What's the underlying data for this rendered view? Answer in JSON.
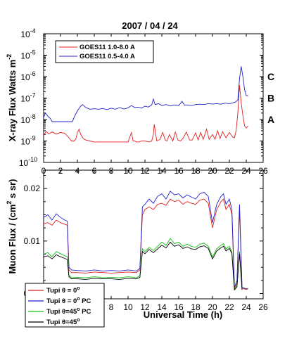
{
  "chart_data": [
    {
      "type": "line",
      "title": "2007 / 04 / 24",
      "ylabel": "X-ray Flux  Watts m",
      "ylabel_exp": "-2",
      "yscale": "log",
      "xlim": [
        0,
        26
      ],
      "ylim": [
        1e-10,
        0.0001
      ],
      "x_ticks": [
        "0",
        "2",
        "4",
        "6",
        "8",
        "10",
        "12",
        "14",
        "16",
        "18",
        "20",
        "22",
        "24",
        "26"
      ],
      "y_ticks": [
        {
          "base": "10",
          "exp": "-4"
        },
        {
          "base": "10",
          "exp": "-5"
        },
        {
          "base": "10",
          "exp": "-6"
        },
        {
          "base": "10",
          "exp": "-7"
        },
        {
          "base": "10",
          "exp": "-8"
        },
        {
          "base": "10",
          "exp": "-9"
        },
        {
          "base": "10",
          "exp": "-10"
        }
      ],
      "flare_classes": [
        {
          "label": "C",
          "value": 1e-06
        },
        {
          "label": "B",
          "value": 1e-07
        },
        {
          "label": "A",
          "value": 1e-08
        }
      ],
      "legend": [
        "GOES11 1.0-8.0 A",
        "GOES11 0.5-4.0 A"
      ],
      "series": [
        {
          "name": "GOES11 1.0-8.0 A",
          "color": "#e02020",
          "x": [
            0,
            0.3,
            0.6,
            1,
            1.5,
            2,
            2.5,
            3,
            3.3,
            3.6,
            3.8,
            4.0,
            4.2,
            4.4,
            4.7,
            5.0,
            5.5,
            6,
            7,
            8,
            9,
            10,
            10.4,
            10.6,
            10.8,
            11,
            11.3,
            11.6,
            12,
            12.5,
            12.8,
            13.0,
            13.1,
            13.4,
            13.8,
            14.1,
            14.4,
            14.6,
            14.9,
            15.3,
            15.6,
            15.9,
            16.2,
            16.5,
            16.9,
            17.3,
            17.6,
            18.0,
            18.3,
            18.6,
            18.9,
            19.3,
            19.6,
            20.0,
            20.3,
            20.6,
            20.9,
            21.2,
            21.6,
            22.0,
            22.4,
            22.6,
            22.8,
            23.0,
            23.2,
            23.4,
            23.6,
            23.8,
            24.0,
            24.2
          ],
          "y": [
            1.8e-09,
            2.8e-09,
            2.2e-09,
            2.6e-09,
            2.1e-09,
            2.5e-09,
            2.3e-09,
            1.4e-09,
            1e-09,
            1e-09,
            1.2e-09,
            2.5e-09,
            3.5e-09,
            2e-09,
            1.3e-09,
            1.1e-09,
            1e-09,
            9e-10,
            9e-10,
            9e-10,
            9e-10,
            9e-10,
            2.5e-09,
            1e-09,
            1e-09,
            9e-10,
            9e-10,
            1e-09,
            1e-09,
            9e-10,
            1e-09,
            2e-09,
            6e-09,
            1e-09,
            1.2e-09,
            2.5e-09,
            1.1e-09,
            1e-09,
            2e-09,
            1e-09,
            2.6e-09,
            1.1e-09,
            1e-09,
            1.3e-09,
            2.6e-09,
            1.1e-09,
            1.1e-09,
            2.4e-09,
            1.1e-09,
            2.5e-09,
            1.2e-09,
            3.5e-09,
            1.2e-09,
            2e-09,
            1.2e-09,
            3e-09,
            1.3e-09,
            2.7e-09,
            1.4e-09,
            2.5e-09,
            1.5e-09,
            1.4e-09,
            3e-09,
            2e-08,
            4e-07,
            6e-08,
            1.5e-08,
            5e-09,
            4e-09,
            5e-09
          ]
        },
        {
          "name": "GOES11 0.5-4.0 A",
          "color": "#2020c8",
          "x": [
            0,
            0.2,
            0.4,
            0.6,
            0.8,
            1.0,
            1.5,
            2.0,
            2.5,
            3.0,
            3.4,
            3.7,
            4.0,
            4.3,
            4.6,
            5.0,
            5.5,
            6.0,
            6.5,
            7.0,
            7.5,
            8.0,
            8.5,
            9.0,
            9.5,
            10.0,
            10.4,
            10.8,
            11.2,
            11.6,
            12.0,
            12.4,
            12.8,
            13.0,
            13.2,
            13.6,
            14.0,
            14.5,
            15.0,
            15.5,
            16.0,
            16.4,
            16.7,
            17.0,
            17.5,
            18.0,
            18.5,
            19.0,
            19.5,
            20.0,
            20.5,
            21.0,
            21.5,
            22.0,
            22.4,
            22.7,
            23.0,
            23.2,
            23.4,
            23.6,
            23.8,
            24.0,
            24.2
          ],
          "y": [
            1.2e-08,
            2e-08,
            1.6e-08,
            1.3e-08,
            1.1e-08,
            8e-09,
            8e-09,
            8e-09,
            8e-09,
            8e-09,
            8e-09,
            1.5e-08,
            2.5e-08,
            3.8e-08,
            5e-08,
            3.6e-08,
            3e-08,
            3.2e-08,
            3e-08,
            3.3e-08,
            2.9e-08,
            3.4e-08,
            3e-08,
            3.6e-08,
            3.1e-08,
            3.5e-08,
            4.5e-08,
            3.6e-08,
            3.8e-08,
            3.4e-08,
            4.2e-08,
            3.8e-08,
            4.8e-08,
            9e-08,
            5e-08,
            5.5e-08,
            4.5e-08,
            5e-08,
            4.3e-08,
            4.8e-08,
            4.5e-08,
            7e-08,
            4.6e-08,
            4.8e-08,
            4.5e-08,
            5e-08,
            5.2e-08,
            5e-08,
            5.5e-08,
            5.3e-08,
            5.5e-08,
            5.2e-08,
            5.8e-08,
            5.5e-08,
            6e-08,
            6.5e-08,
            8e-08,
            8e-07,
            3e-06,
            1e-06,
            2.5e-07,
            1.3e-07,
            1.3e-07
          ]
        }
      ]
    },
    {
      "type": "line",
      "xlabel": "Universal Time  (h)",
      "ylabel": "Muon Flux / (cm",
      "ylabel_exp": "2",
      "ylabel_tail": " s sr)",
      "xlim": [
        0,
        26
      ],
      "ylim": [
        -0.001,
        0.0235
      ],
      "x_ticks": [
        "0",
        "2",
        "4",
        "6",
        "8",
        "10",
        "12",
        "14",
        "16",
        "18",
        "20",
        "22",
        "24",
        "26"
      ],
      "y_ticks": [
        "0.00",
        "0.01",
        "0.02"
      ],
      "legend_items": [
        {
          "text": "Tupi θ = 0",
          "sup": "o",
          "tail": ""
        },
        {
          "text": "Tupi θ = 0",
          "sup": "o",
          "tail": " PC"
        },
        {
          "text": "Tupi θ=45",
          "sup": "o",
          "tail": " PC"
        },
        {
          "text": "Tupi θ=45",
          "sup": "o",
          "tail": ""
        }
      ],
      "series": [
        {
          "name": "Tupi θ = 0",
          "color": "#e02020",
          "x": [
            0,
            0.5,
            1,
            1.5,
            2,
            2.5,
            2.8,
            3.0,
            3.3,
            4,
            5,
            6,
            7,
            8,
            9,
            10,
            11,
            11.4,
            11.7,
            12.0,
            12.5,
            13,
            13.5,
            14,
            14.5,
            15,
            15.5,
            16,
            16.5,
            17,
            17.5,
            18,
            18.5,
            19,
            19.5,
            20,
            20.5,
            21,
            21.3,
            21.6,
            22.0,
            22.3,
            22.6,
            22.9,
            23.2,
            23.5,
            24,
            24.2
          ],
          "y": [
            0.0133,
            0.0135,
            0.013,
            0.014,
            0.0135,
            0.0132,
            0.013,
            0.0045,
            0.004,
            0.004,
            0.0039,
            0.0041,
            0.004,
            0.0039,
            0.004,
            0.0041,
            0.004,
            0.0045,
            0.015,
            0.016,
            0.0165,
            0.016,
            0.017,
            0.0172,
            0.0168,
            0.018,
            0.0175,
            0.0178,
            0.017,
            0.0175,
            0.0172,
            0.017,
            0.0178,
            0.018,
            0.0172,
            0.0125,
            0.016,
            0.0175,
            0.018,
            0.016,
            0.017,
            0.015,
            0.001,
            0.002,
            0.016,
            0.001,
            0.0008,
            0.0009
          ]
        },
        {
          "name": "Tupi θ = 0 PC",
          "color": "#2020d0",
          "x": [
            0,
            0.5,
            1,
            1.5,
            2,
            2.5,
            2.8,
            3.0,
            3.3,
            4,
            5,
            6,
            7,
            8,
            9,
            10,
            11,
            11.4,
            11.7,
            12.0,
            12.5,
            13,
            13.5,
            14,
            14.5,
            15,
            15.5,
            16,
            16.5,
            17,
            17.5,
            18,
            18.5,
            19,
            19.5,
            20,
            20.5,
            21,
            21.3,
            21.6,
            22.0,
            22.3,
            22.6,
            22.9,
            23.2,
            23.5,
            24,
            24.2
          ],
          "y": [
            0.0145,
            0.015,
            0.014,
            0.0152,
            0.0145,
            0.014,
            0.0138,
            0.005,
            0.0045,
            0.0044,
            0.0043,
            0.0045,
            0.0043,
            0.0044,
            0.0043,
            0.0045,
            0.0043,
            0.0048,
            0.0165,
            0.017,
            0.018,
            0.0172,
            0.0185,
            0.019,
            0.018,
            0.0195,
            0.0188,
            0.019,
            0.0182,
            0.0188,
            0.0184,
            0.018,
            0.019,
            0.0193,
            0.0185,
            0.0135,
            0.017,
            0.0185,
            0.019,
            0.017,
            0.018,
            0.016,
            0.0012,
            0.0025,
            0.017,
            0.0012,
            0.0009,
            0.001
          ]
        },
        {
          "name": "Tupi θ=45 PC",
          "color": "#10c010",
          "x": [
            0,
            0.5,
            1,
            1.5,
            2,
            2.5,
            2.8,
            3.0,
            3.3,
            4,
            5,
            6,
            7,
            8,
            9,
            10,
            11,
            11.4,
            11.7,
            12.0,
            12.5,
            13,
            13.5,
            14,
            14.5,
            15,
            15.5,
            16,
            16.5,
            17,
            17.5,
            18,
            18.5,
            19,
            19.5,
            20,
            20.5,
            21,
            21.3,
            21.6,
            22.0,
            22.3,
            22.6,
            22.9,
            23.2,
            23.5
          ],
          "y": [
            0.0075,
            0.0078,
            0.007,
            0.008,
            0.0076,
            0.0072,
            0.007,
            0.0035,
            0.003,
            0.0031,
            0.003,
            0.0032,
            0.003,
            0.0031,
            0.003,
            0.0032,
            0.003,
            0.0034,
            0.0085,
            0.008,
            0.0088,
            0.0082,
            0.009,
            0.0098,
            0.0092,
            0.0105,
            0.0095,
            0.0098,
            0.009,
            0.0094,
            0.009,
            0.0088,
            0.0094,
            0.0096,
            0.009,
            0.007,
            0.0085,
            0.0092,
            0.0095,
            0.0085,
            0.009,
            0.008,
            0.0008,
            0.0015,
            0.008,
            0.0008
          ]
        },
        {
          "name": "Tupi θ=45",
          "color": "#000000",
          "x": [
            0,
            0.5,
            1,
            1.5,
            2,
            2.5,
            2.8,
            3.0,
            3.3,
            4,
            5,
            6,
            7,
            8,
            9,
            10,
            11,
            11.4,
            11.7,
            12.0,
            12.5,
            13,
            13.5,
            14,
            14.5,
            15,
            15.5,
            16,
            16.5,
            17,
            17.5,
            18,
            18.5,
            19,
            19.5,
            20,
            20.5,
            21,
            21.3,
            21.6,
            22.0,
            22.3,
            22.6,
            22.9,
            23.2,
            23.5
          ],
          "y": [
            0.007,
            0.0072,
            0.0066,
            0.0074,
            0.007,
            0.0067,
            0.0065,
            0.0032,
            0.0028,
            0.0028,
            0.0027,
            0.0029,
            0.0028,
            0.0028,
            0.0027,
            0.0029,
            0.0028,
            0.0031,
            0.008,
            0.0076,
            0.0084,
            0.0078,
            0.0085,
            0.0092,
            0.0087,
            0.0098,
            0.009,
            0.0093,
            0.0086,
            0.0089,
            0.0085,
            0.0084,
            0.0089,
            0.0091,
            0.0086,
            0.0066,
            0.0081,
            0.0087,
            0.009,
            0.0081,
            0.0086,
            0.0076,
            0.0007,
            0.0013,
            0.0076,
            0.0007
          ]
        }
      ]
    }
  ]
}
